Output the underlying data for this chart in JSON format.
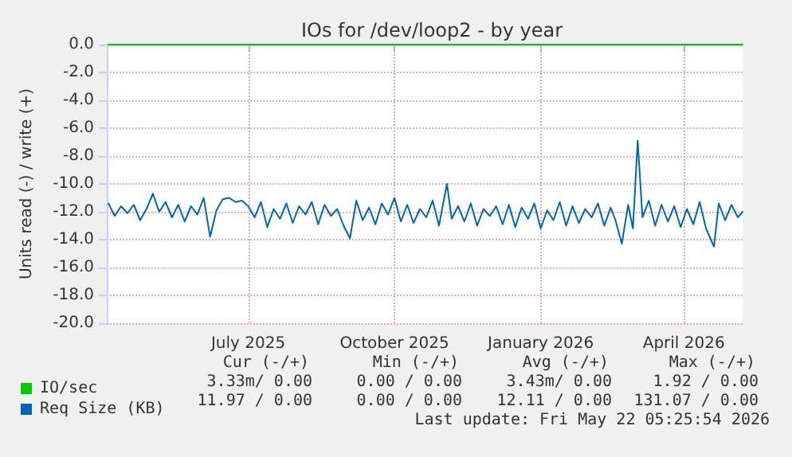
{
  "chart_data": {
    "type": "line",
    "title": "IOs for /dev/loop2 - by year",
    "ylabel": "Units read (-) / write (+)",
    "x": [
      "2025-04-18",
      "2025-04-22",
      "2025-04-26",
      "2025-04-30",
      "2025-05-04",
      "2025-05-08",
      "2025-05-12",
      "2025-05-16",
      "2025-05-20",
      "2025-05-24",
      "2025-05-28",
      "2025-06-01",
      "2025-06-05",
      "2025-06-09",
      "2025-06-13",
      "2025-06-17",
      "2025-06-21",
      "2025-06-25",
      "2025-06-29",
      "2025-07-03",
      "2025-07-07",
      "2025-07-11",
      "2025-07-15",
      "2025-07-19",
      "2025-07-23",
      "2025-07-27",
      "2025-07-31",
      "2025-08-04",
      "2025-08-08",
      "2025-08-12",
      "2025-08-16",
      "2025-08-20",
      "2025-08-24",
      "2025-08-28",
      "2025-09-01",
      "2025-09-05",
      "2025-09-09",
      "2025-09-13",
      "2025-09-17",
      "2025-09-21",
      "2025-09-25",
      "2025-09-29",
      "2025-10-03",
      "2025-10-07",
      "2025-10-11",
      "2025-10-15",
      "2025-10-19",
      "2025-10-23",
      "2025-10-27",
      "2025-10-31",
      "2025-11-04",
      "2025-11-08",
      "2025-11-12",
      "2025-11-17",
      "2025-11-20",
      "2025-11-24",
      "2025-11-28",
      "2025-12-02",
      "2025-12-06",
      "2025-12-10",
      "2025-12-14",
      "2025-12-18",
      "2025-12-22",
      "2025-12-26",
      "2025-12-30",
      "2026-01-03",
      "2026-01-07",
      "2026-01-11",
      "2026-01-15",
      "2026-01-19",
      "2026-01-23",
      "2026-01-27",
      "2026-01-31",
      "2026-02-04",
      "2026-02-08",
      "2026-02-12",
      "2026-02-16",
      "2026-02-20",
      "2026-02-24",
      "2026-02-28",
      "2026-03-03",
      "2026-03-07",
      "2026-03-11",
      "2026-03-14",
      "2026-03-17",
      "2026-03-20",
      "2026-03-24",
      "2026-03-28",
      "2026-04-01",
      "2026-04-05",
      "2026-04-09",
      "2026-04-13",
      "2026-04-17",
      "2026-04-21",
      "2026-04-25",
      "2026-04-29",
      "2026-05-04",
      "2026-05-07",
      "2026-05-11",
      "2026-05-15",
      "2026-05-19",
      "2026-05-22"
    ],
    "series": [
      {
        "name": "IO/sec",
        "color": "#00cc00",
        "values": [
          0,
          0,
          0,
          0,
          0,
          0,
          0,
          0,
          0,
          0,
          0,
          0,
          0,
          0,
          0,
          0,
          0,
          0,
          0,
          0,
          0,
          0,
          0,
          0,
          0,
          0,
          0,
          0,
          0,
          0,
          0,
          0,
          0,
          0,
          0,
          0,
          0,
          0,
          0,
          0,
          0,
          0,
          0,
          0,
          0,
          0,
          0,
          0,
          0,
          0,
          0,
          0,
          0,
          0,
          0,
          0,
          0,
          0,
          0,
          0,
          0,
          0,
          0,
          0,
          0,
          0,
          0,
          0,
          0,
          0,
          0,
          0,
          0,
          0,
          0,
          0,
          0,
          0,
          0,
          0,
          0,
          0,
          0,
          0,
          0,
          0,
          0,
          0,
          0,
          0,
          0,
          0,
          0,
          0,
          0,
          0,
          0,
          0,
          0,
          0,
          0,
          0
        ]
      },
      {
        "name": "Req Size (KB)",
        "color": "#0066b3",
        "values": [
          -11.4,
          -12.3,
          -11.6,
          -12.1,
          -11.5,
          -12.6,
          -11.8,
          -10.7,
          -12.0,
          -11.3,
          -12.4,
          -11.5,
          -12.7,
          -11.6,
          -12.2,
          -11.0,
          -13.8,
          -11.9,
          -11.1,
          -11.0,
          -11.3,
          -11.2,
          -11.6,
          -12.4,
          -11.3,
          -13.1,
          -11.8,
          -12.5,
          -11.4,
          -12.8,
          -11.6,
          -12.2,
          -11.3,
          -12.9,
          -11.5,
          -12.3,
          -11.8,
          -13.0,
          -13.9,
          -11.2,
          -12.6,
          -11.7,
          -12.9,
          -11.4,
          -12.2,
          -11.0,
          -12.7,
          -11.5,
          -12.8,
          -11.8,
          -12.4,
          -11.2,
          -13.0,
          -10.0,
          -12.5,
          -11.6,
          -12.7,
          -11.4,
          -13.0,
          -11.8,
          -12.3,
          -11.6,
          -12.9,
          -11.5,
          -13.1,
          -11.7,
          -12.5,
          -11.4,
          -13.2,
          -11.9,
          -12.6,
          -11.3,
          -13.0,
          -11.6,
          -12.8,
          -11.8,
          -12.4,
          -11.4,
          -13.0,
          -11.7,
          -12.6,
          -14.3,
          -11.5,
          -13.2,
          -6.9,
          -12.4,
          -11.2,
          -13.0,
          -11.5,
          -12.7,
          -11.6,
          -13.1,
          -11.8,
          -12.9,
          -11.3,
          -13.2,
          -14.5,
          -11.4,
          -12.6,
          -11.5,
          -12.4,
          -12.0
        ]
      }
    ],
    "xlim": [
      "2025-04-17",
      "2026-05-22"
    ],
    "xticks": [
      {
        "value": "2025-07-15",
        "label": "July 2025"
      },
      {
        "value": "2025-10-15",
        "label": "October 2025"
      },
      {
        "value": "2026-01-15",
        "label": "January 2026"
      },
      {
        "value": "2026-04-15",
        "label": "April 2026"
      }
    ],
    "ylim": [
      -20,
      0
    ],
    "yticks": [
      {
        "value": 0,
        "label": "0.0"
      },
      {
        "value": -2,
        "label": "-2.0"
      },
      {
        "value": -4,
        "label": "-4.0"
      },
      {
        "value": -6,
        "label": "-6.0"
      },
      {
        "value": -8,
        "label": "-8.0"
      },
      {
        "value": -10,
        "label": "-10.0"
      },
      {
        "value": -12,
        "label": "-12.0"
      },
      {
        "value": -14,
        "label": "-14.0"
      },
      {
        "value": -16,
        "label": "-16.0"
      },
      {
        "value": -18,
        "label": "-18.0"
      },
      {
        "value": -20,
        "label": "-20.0"
      }
    ],
    "grid": true,
    "legend": "bottom left",
    "marker": "none",
    "line_style": "solid",
    "annotations": [
      "Cur (-/+)",
      "Min (-/+)",
      "Avg (-/+)",
      "Max (-/+)",
      "3.33m/ 0.00",
      "0.00 / 0.00",
      "3.43m/ 0.00",
      "1.92 / 0.00",
      "11.97 / 0.00",
      "0.00 / 0.00",
      "12.11 / 0.00",
      "131.07 / 0.00",
      "Last update: Fri May 22 05:25:54 2026"
    ]
  }
}
